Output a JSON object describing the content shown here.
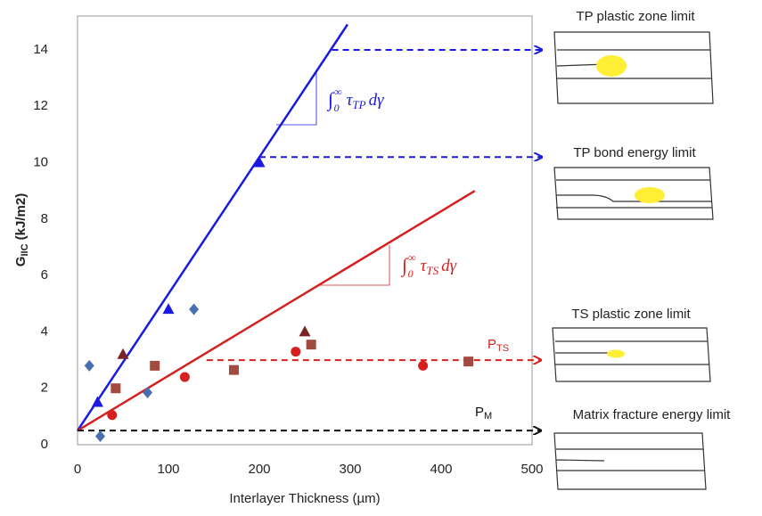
{
  "chart_data": {
    "type": "scatter",
    "ylabel": {
      "main": "G",
      "sub": "IIC",
      "unit": " (kJ/m2)"
    },
    "xlabel": "Interlayer Thickness (µm)",
    "xlim": [
      0,
      500
    ],
    "ylim": [
      0,
      15.2
    ],
    "xticks": [
      0,
      100,
      200,
      300,
      400,
      500
    ],
    "yticks": [
      0,
      2,
      4,
      6,
      8,
      10,
      12,
      14
    ],
    "series": [
      {
        "marker": "diamond",
        "color": "#4a6fb0",
        "x": [
          13,
          25,
          77,
          128
        ],
        "values": [
          2.8,
          0.3,
          1.85,
          4.8
        ]
      },
      {
        "marker": "triangle",
        "color": "#1a1ae0",
        "x": [
          22,
          100,
          200
        ],
        "values": [
          1.5,
          4.8,
          10
        ]
      },
      {
        "marker": "triangle",
        "color": "#7a2424",
        "x": [
          50,
          250
        ],
        "values": [
          3.2,
          4.0
        ]
      },
      {
        "marker": "square",
        "color": "#a04a40",
        "x": [
          42,
          85,
          172,
          257,
          430
        ],
        "values": [
          2.0,
          2.8,
          2.65,
          3.55,
          2.95
        ]
      },
      {
        "marker": "circle",
        "color": "#d62020",
        "x": [
          38,
          118,
          240,
          380
        ],
        "values": [
          1.05,
          2.4,
          3.3,
          2.8
        ]
      }
    ],
    "fit_lines": [
      {
        "color": "#1a1ae0",
        "x": [
          0,
          297
        ],
        "values": [
          0.5,
          14.9
        ]
      },
      {
        "color": "#d62020",
        "x": [
          0,
          437
        ],
        "values": [
          0.5,
          9.0
        ]
      }
    ],
    "limit_lines": [
      {
        "color": "#1a1ae0",
        "x": [
          280,
          511
        ],
        "values": [
          14,
          14
        ]
      },
      {
        "color": "#1a1ae0",
        "x": [
          200,
          511
        ],
        "values": [
          10.2,
          10.2
        ]
      },
      {
        "color": "#d62020",
        "x": [
          142,
          510
        ],
        "values": [
          3,
          3
        ]
      },
      {
        "color": "#111111",
        "x": [
          0,
          510
        ],
        "values": [
          0.5,
          0.5
        ]
      }
    ],
    "integral_tp": {
      "symbol": "∫",
      "lower": "0",
      "upper": "∞",
      "tau": "τ",
      "sub": "TP",
      "tail": "dγ",
      "color": "#1a1ae0"
    },
    "integral_ts": {
      "symbol": "∫",
      "lower": "0",
      "upper": "∞",
      "tau": "τ",
      "sub": "TS",
      "tail": "dγ",
      "color": "#d62020"
    },
    "p_ts": {
      "main": "P",
      "sub": "TS",
      "color": "#d62020"
    },
    "p_m": {
      "main": "P",
      "sub": "M",
      "color": "#111111"
    }
  },
  "panels": [
    "TP plastic zone limit",
    "TP bond energy limit",
    "TS plastic zone limit",
    "Matrix fracture energy limit"
  ]
}
